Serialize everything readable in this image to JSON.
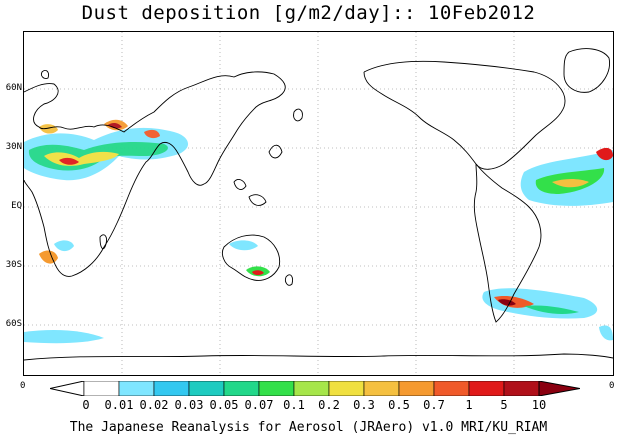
{
  "title": "Dust deposition [g/m2/day]:: 10Feb2012",
  "latitude_labels": [
    "60N",
    "30N",
    "EQ",
    "30S",
    "60S"
  ],
  "left_edge_label": "0",
  "right_edge_label": "0",
  "colorbar": {
    "tick_labels": [
      "0",
      "0.01",
      "0.02",
      "0.03",
      "0.05",
      "0.07",
      "0.1",
      "0.2",
      "0.3",
      "0.5",
      "0.7",
      "1",
      "5",
      "10"
    ],
    "colors": [
      "#ffffff",
      "#7fe6ff",
      "#33c8f0",
      "#1ecbc0",
      "#22d88a",
      "#33e04a",
      "#a6e64a",
      "#f0e040",
      "#f5c040",
      "#f59a30",
      "#f05a2a",
      "#e01a1a",
      "#b0101a",
      "#8a0010"
    ]
  },
  "footer": "The Japanese Reanalysis for Aerosol (JRAero) v1.0 MRI/KU_RIAM"
}
